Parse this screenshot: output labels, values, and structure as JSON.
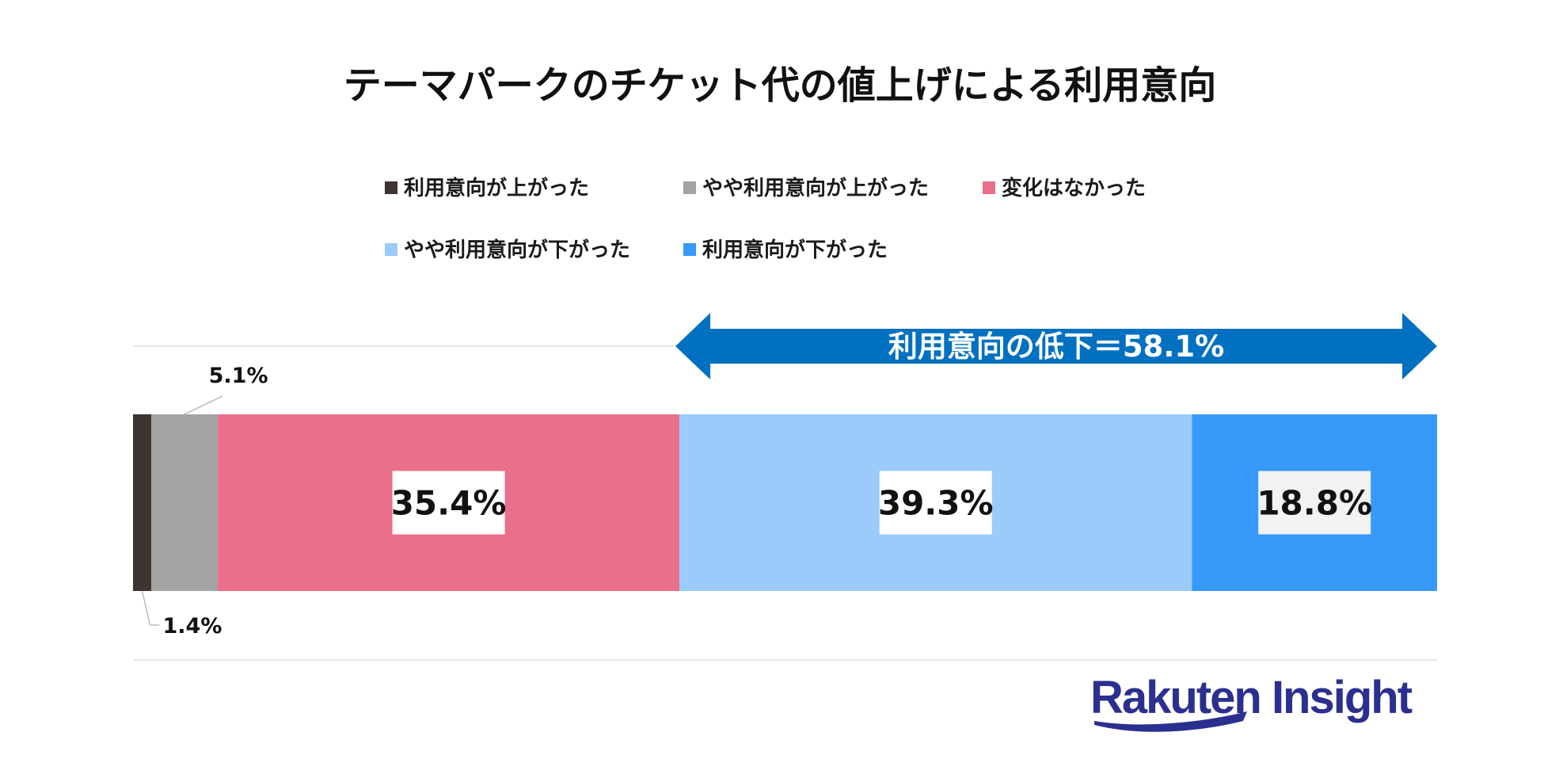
{
  "chart_data": {
    "type": "bar",
    "orientation": "horizontal-stacked-100",
    "title": "テーマパークのチケット代の値上げによる利用意向",
    "legend_position": "top",
    "grid": false,
    "xlim": [
      0,
      100
    ],
    "series": [
      {
        "name": "利用意向が上がった",
        "value": 1.4,
        "label": "1.4%",
        "color": "#3e3431"
      },
      {
        "name": "やや利用意向が上がった",
        "value": 5.1,
        "label": "5.1%",
        "color": "#a3a3a3"
      },
      {
        "name": "変化はなかった",
        "value": 35.4,
        "label": "35.4%",
        "color": "#ea6f8a"
      },
      {
        "name": "やや利用意向が下がった",
        "value": 39.3,
        "label": "39.3%",
        "color": "#9bcbfb"
      },
      {
        "name": "利用意向が下がった",
        "value": 18.8,
        "label": "18.8%",
        "color": "#3799fa"
      }
    ],
    "annotation": {
      "text": "利用意向の低下＝58.1%",
      "value": 58.1,
      "spans_series": [
        "やや利用意向が下がった",
        "利用意向が下がった"
      ],
      "color": "#0070c0"
    }
  },
  "brand": {
    "logo_text": "Rakuten Insight",
    "color": "#2b2f8f"
  }
}
